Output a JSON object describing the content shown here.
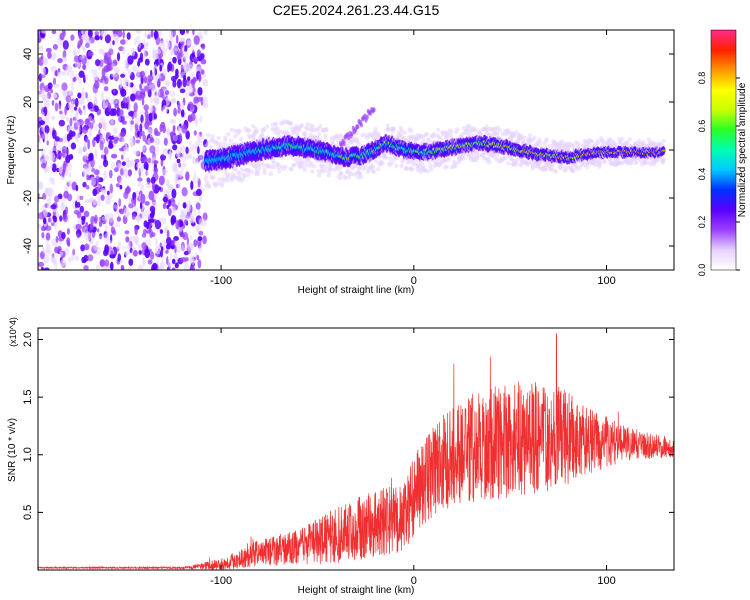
{
  "title": "C2E5.2024.261.23.44.G15",
  "colors": {
    "snr_line": "#f03030",
    "axis": "#000000",
    "colorbar_stops": [
      "#ffffff",
      "#e6d2ff",
      "#9a40ff",
      "#5a00ff",
      "#0030ff",
      "#00c8ff",
      "#00ffb4",
      "#28ff28",
      "#c8ff00",
      "#ffff00",
      "#ff9600",
      "#ff2000",
      "#ff2a8c"
    ]
  },
  "chart_data": [
    {
      "id": "spectrogram",
      "type": "heatmap",
      "xlabel": "Height of straight line (km)",
      "ylabel": "Frequency (Hz)",
      "xlim": [
        -195,
        135
      ],
      "ylim": [
        -50,
        50
      ],
      "xticks": [
        -100,
        0,
        100
      ],
      "xtick_labels": [
        "-100",
        "0",
        "100"
      ],
      "yticks": [
        -40,
        -20,
        0,
        20,
        40
      ],
      "ytick_labels": [
        "-40",
        "-20",
        "0",
        "20",
        "40"
      ],
      "colorbar": {
        "label": "Normalized spectral amplitude",
        "range": [
          0.0,
          1.0
        ],
        "ticks": [
          0.0,
          0.2,
          0.4,
          0.6,
          0.8
        ],
        "tick_labels": [
          "0.0",
          "0.2",
          "0.4",
          "0.6",
          "0.8"
        ]
      },
      "noise_region_x": [
        -195,
        -108
      ],
      "signal_trace": {
        "x": [
          -108,
          -95,
          -80,
          -65,
          -50,
          -35,
          -25,
          -15,
          -5,
          5,
          20,
          35,
          50,
          65,
          80,
          95,
          110,
          130
        ],
        "frequency_hz": [
          -5,
          -3,
          0,
          2,
          0,
          -3,
          -2,
          3,
          0,
          -1,
          1,
          3,
          1,
          -2,
          -3,
          -1,
          -1,
          -1
        ]
      }
    },
    {
      "id": "snr",
      "type": "line",
      "xlabel": "Height of straight line (km)",
      "ylabel": "SNR (10 * v/v)",
      "y_multiplier": "(x10^4)",
      "xlim": [
        -195,
        135
      ],
      "ylim": [
        0,
        2.1
      ],
      "xticks": [
        -100,
        0,
        100
      ],
      "xtick_labels": [
        "-100",
        "0",
        "100"
      ],
      "yticks": [
        0.5,
        1.0,
        1.5,
        2.0
      ],
      "ytick_labels": [
        "0.5",
        "1.0",
        "1.5",
        "2.0"
      ],
      "envelope": {
        "x": [
          -195,
          -120,
          -100,
          -80,
          -60,
          -40,
          -20,
          -5,
          0,
          10,
          20,
          40,
          60,
          75,
          90,
          110,
          135
        ],
        "mean": [
          0.02,
          0.02,
          0.05,
          0.15,
          0.2,
          0.3,
          0.4,
          0.45,
          0.65,
          0.85,
          1.0,
          1.1,
          1.15,
          1.15,
          1.12,
          1.1,
          1.06
        ],
        "spread": [
          0.005,
          0.008,
          0.05,
          0.12,
          0.15,
          0.25,
          0.3,
          0.3,
          0.35,
          0.4,
          0.45,
          0.5,
          0.5,
          0.45,
          0.3,
          0.15,
          0.08
        ]
      },
      "peak": {
        "x": 74,
        "value": 2.05
      }
    }
  ]
}
